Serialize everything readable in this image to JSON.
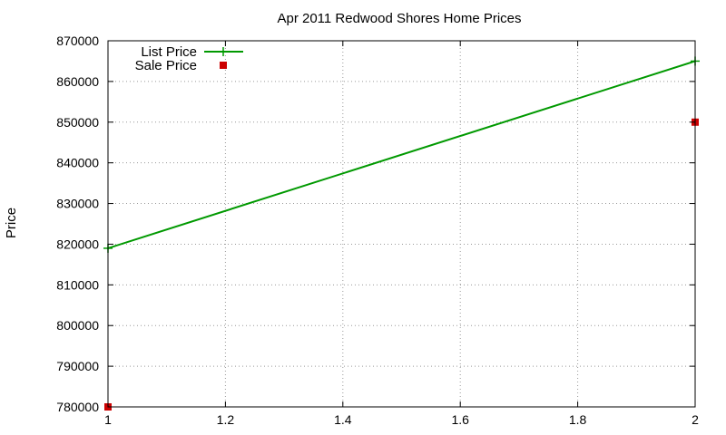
{
  "chart_data": {
    "type": "line",
    "title": "Apr 2011 Redwood Shores Home Prices",
    "xlabel": "",
    "ylabel": "Price",
    "xlim": [
      1,
      2
    ],
    "ylim": [
      780000,
      870000
    ],
    "x_ticks": [
      1,
      1.2,
      1.4,
      1.6,
      1.8,
      2
    ],
    "x_tick_labels": [
      "1",
      "1.2",
      "1.4",
      "1.6",
      "1.8",
      "2"
    ],
    "y_ticks": [
      780000,
      790000,
      800000,
      810000,
      820000,
      830000,
      840000,
      850000,
      860000,
      870000
    ],
    "y_tick_labels": [
      "780000",
      "790000",
      "800000",
      "810000",
      "820000",
      "830000",
      "840000",
      "850000",
      "860000",
      "870000"
    ],
    "grid": true,
    "legend_position": "top-left",
    "series": [
      {
        "name": "List Price",
        "style": "linespoints",
        "color": "#009900",
        "marker": "plus",
        "x": [
          1,
          2
        ],
        "y": [
          819000,
          865000
        ]
      },
      {
        "name": "Sale Price",
        "style": "points",
        "color": "#cc0000",
        "marker": "square",
        "x": [
          1,
          2
        ],
        "y": [
          780000,
          850000
        ]
      }
    ]
  }
}
